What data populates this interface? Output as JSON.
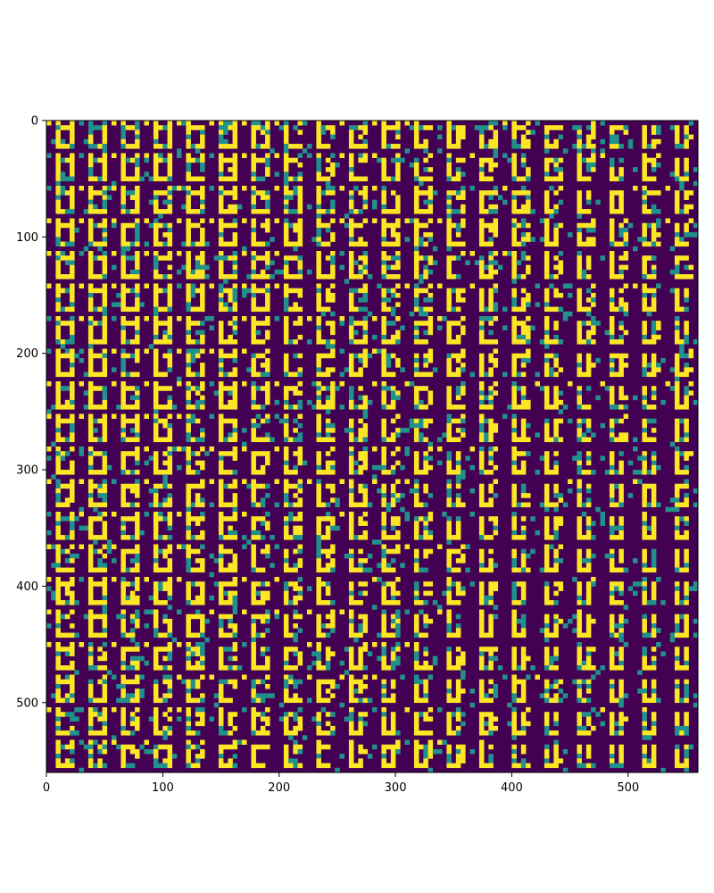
{
  "chart_data": {
    "type": "heatmap",
    "title": "",
    "xlabel": "",
    "ylabel": "",
    "description_grid": {
      "tile_size": 28,
      "tiles_per_row": 20,
      "tiles_per_col": 20
    },
    "xlim": [
      0,
      560
    ],
    "ylim": [
      560,
      0
    ],
    "x_ticks": [
      0,
      100,
      200,
      300,
      400,
      500
    ],
    "y_ticks": [
      0,
      100,
      200,
      300,
      400,
      500
    ],
    "x_tick_labels": [
      "0",
      "100",
      "200",
      "300",
      "400",
      "500"
    ],
    "y_tick_labels": [
      "0",
      "100",
      "200",
      "300",
      "400",
      "500"
    ],
    "colormap": [
      "#440154",
      "#31688e",
      "#21918c",
      "#35b779",
      "#fde725"
    ],
    "value_range": [
      0,
      1
    ],
    "grid": false,
    "tile_morph": "columns transition left-to-right and rows top-to-bottom from a square-loop glyph toward a U/J-shaped stroke glyph"
  }
}
